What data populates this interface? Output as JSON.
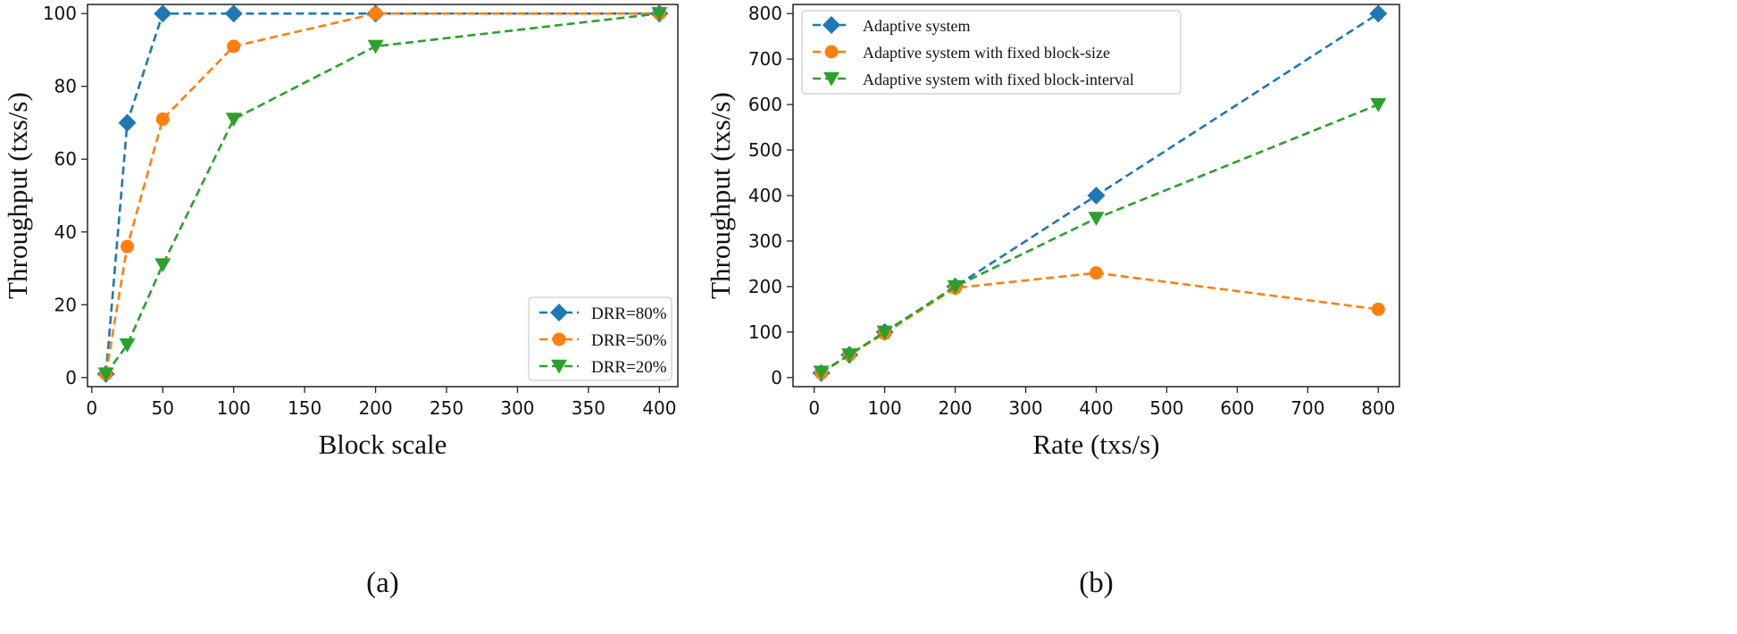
{
  "colors": {
    "blue": "#1f77b4",
    "orange": "#ff7f0e",
    "green": "#2ca02c"
  },
  "chart_data": [
    {
      "type": "line",
      "caption": "(a)",
      "xlabel": "Block scale",
      "ylabel": "Throughput (txs/s)",
      "xlim": [
        -3,
        413
      ],
      "ylim": [
        -2.5,
        102.5
      ],
      "xticks": [
        0,
        50,
        100,
        150,
        200,
        250,
        300,
        350,
        400
      ],
      "yticks": [
        0,
        20,
        40,
        60,
        80,
        100
      ],
      "x": [
        10,
        25,
        50,
        100,
        200,
        400
      ],
      "series": [
        {
          "name": "DRR=80%",
          "marker": "diamond",
          "color": "#1f77b4",
          "values": [
            1,
            70,
            100,
            100,
            100,
            100
          ]
        },
        {
          "name": "DRR=50%",
          "marker": "circle",
          "color": "#ff7f0e",
          "values": [
            1,
            36,
            71,
            91,
            100,
            100
          ]
        },
        {
          "name": "DRR=20%",
          "marker": "triangle-down",
          "color": "#2ca02c",
          "values": [
            1,
            9,
            31,
            71,
            91,
            100
          ]
        }
      ],
      "legend_position": "bottom-right"
    },
    {
      "type": "line",
      "caption": "(b)",
      "xlabel": "Rate (txs/s)",
      "ylabel": "Throughput (txs/s)",
      "xlim": [
        -30,
        830
      ],
      "ylim": [
        -20,
        820
      ],
      "xticks": [
        0,
        100,
        200,
        300,
        400,
        500,
        600,
        700,
        800
      ],
      "yticks": [
        0,
        100,
        200,
        300,
        400,
        500,
        600,
        700,
        800
      ],
      "x": [
        10,
        50,
        100,
        200,
        400,
        800
      ],
      "series": [
        {
          "name": "Adaptive system",
          "marker": "diamond",
          "color": "#1f77b4",
          "values": [
            10,
            50,
            100,
            200,
            400,
            800
          ]
        },
        {
          "name": "Adaptive system with fixed block-size",
          "marker": "circle",
          "color": "#ff7f0e",
          "values": [
            10,
            50,
            97,
            197,
            230,
            150
          ]
        },
        {
          "name": "Adaptive system with fixed block-interval",
          "marker": "triangle-down",
          "color": "#2ca02c",
          "values": [
            12,
            50,
            100,
            200,
            350,
            600
          ]
        }
      ],
      "legend_position": "top-left"
    }
  ]
}
